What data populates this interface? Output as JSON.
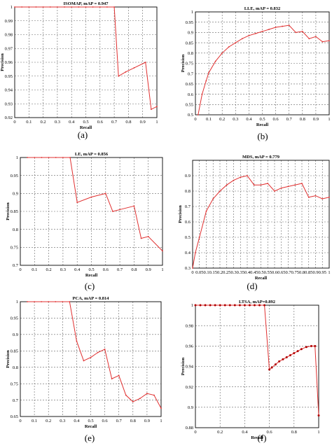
{
  "figure": {
    "panels": [
      {
        "sublabel": "(a)"
      },
      {
        "sublabel": "(b)"
      },
      {
        "sublabel": "(c)"
      },
      {
        "sublabel": "(d)"
      },
      {
        "sublabel": "(e)"
      },
      {
        "sublabel": "(f)"
      }
    ]
  },
  "chart_data": [
    {
      "type": "line",
      "title": "ISOMAP, mAP = 0.947",
      "xlabel": "Recall",
      "ylabel": "Precision",
      "xlim": [
        0,
        1
      ],
      "ylim": [
        0.92,
        1
      ],
      "xticks": [
        0,
        0.1,
        0.2,
        0.3,
        0.4,
        0.5,
        0.6,
        0.7,
        0.8,
        0.9,
        1
      ],
      "xtick_labels": [
        "0",
        "0.1",
        "0.2",
        "0.3",
        "0.4",
        "0.5",
        "0.6",
        "0.7",
        "0.8",
        "0.9",
        "1"
      ],
      "yticks": [
        0.92,
        0.93,
        0.94,
        0.95,
        0.96,
        0.97,
        0.98,
        0.99,
        1
      ],
      "ytick_labels": [
        "0.92",
        "0.93",
        "0.94",
        "0.95",
        "0.96",
        "0.97",
        "0.98",
        "0.99",
        "1"
      ],
      "grid": true,
      "color": "#e03030",
      "x": [
        0,
        0.05,
        0.1,
        0.15,
        0.2,
        0.25,
        0.3,
        0.35,
        0.4,
        0.45,
        0.5,
        0.55,
        0.6,
        0.65,
        0.7,
        0.73,
        0.78,
        0.84,
        0.92,
        0.96,
        1.0
      ],
      "y": [
        1,
        1,
        1,
        1,
        1,
        1,
        1,
        1,
        1,
        1,
        1,
        1,
        1,
        1,
        1,
        0.95,
        0.953,
        0.956,
        0.96,
        0.926,
        0.928
      ]
    },
    {
      "type": "line",
      "title": "LLE, mAP = 0.832",
      "xlabel": "Recall",
      "ylabel": "Precision",
      "xlim": [
        0,
        1
      ],
      "ylim": [
        0.5,
        1
      ],
      "xticks": [
        0,
        0.1,
        0.2,
        0.3,
        0.4,
        0.5,
        0.6,
        0.7,
        0.8,
        0.9,
        1
      ],
      "xtick_labels": [
        "0",
        "0.1",
        "0.2",
        "0.3",
        "0.4",
        "0.5",
        "0.6",
        "0.7",
        "0.8",
        "0.9",
        "1"
      ],
      "yticks": [
        0.5,
        0.55,
        0.6,
        0.65,
        0.7,
        0.75,
        0.8,
        0.85,
        0.9,
        0.95,
        1
      ],
      "ytick_labels": [
        "0.5",
        "0.55",
        "0.6",
        "0.65",
        "0.7",
        "0.75",
        "0.8",
        "0.85",
        "0.9",
        "0.95",
        "1"
      ],
      "grid": true,
      "color": "#e03030",
      "x": [
        0.02,
        0.05,
        0.08,
        0.1,
        0.15,
        0.2,
        0.25,
        0.3,
        0.35,
        0.4,
        0.45,
        0.5,
        0.55,
        0.6,
        0.65,
        0.7,
        0.75,
        0.8,
        0.85,
        0.9,
        0.95,
        1.0
      ],
      "y": [
        0.5,
        0.6,
        0.665,
        0.705,
        0.76,
        0.8,
        0.83,
        0.85,
        0.87,
        0.885,
        0.895,
        0.905,
        0.915,
        0.925,
        0.93,
        0.935,
        0.9,
        0.905,
        0.87,
        0.88,
        0.855,
        0.86
      ]
    },
    {
      "type": "line",
      "title": "LE, mAP = 0.856",
      "xlabel": "Recall",
      "ylabel": "Precision",
      "xlim": [
        0,
        1
      ],
      "ylim": [
        0.7,
        1
      ],
      "xticks": [
        0,
        0.1,
        0.2,
        0.3,
        0.4,
        0.5,
        0.6,
        0.7,
        0.8,
        0.9,
        1
      ],
      "xtick_labels": [
        "0",
        "0.1",
        "0.2",
        "0.3",
        "0.4",
        "0.5",
        "0.6",
        "0.7",
        "0.8",
        "0.9",
        "1"
      ],
      "yticks": [
        0.7,
        0.75,
        0.8,
        0.85,
        0.9,
        0.95,
        1
      ],
      "ytick_labels": [
        "0.7",
        "0.75",
        "0.8",
        "0.85",
        "0.9",
        "0.95",
        "1"
      ],
      "grid": true,
      "color": "#e03030",
      "x": [
        0.05,
        0.1,
        0.15,
        0.2,
        0.25,
        0.3,
        0.35,
        0.4,
        0.5,
        0.6,
        0.65,
        0.7,
        0.8,
        0.85,
        0.9,
        1.0
      ],
      "y": [
        1,
        1,
        1,
        1,
        1,
        1,
        1,
        0.875,
        0.89,
        0.9,
        0.85,
        0.855,
        0.865,
        0.775,
        0.78,
        0.74
      ]
    },
    {
      "type": "line",
      "title": "MDS, mAP = 0.779",
      "xlabel": "Recall",
      "ylabel": "Precision",
      "xlim": [
        0,
        1
      ],
      "ylim": [
        0.3,
        1
      ],
      "xticks": [
        0,
        0.05,
        0.1,
        0.15,
        0.2,
        0.25,
        0.3,
        0.35,
        0.4,
        0.45,
        0.5,
        0.55,
        0.6,
        0.65,
        0.7,
        0.75,
        0.8,
        0.85,
        0.9,
        0.95,
        1
      ],
      "xtick_labels": [
        "0",
        "0.05",
        "0.1",
        "0.15",
        "0.2",
        "0.25",
        "0.3",
        "0.35",
        "0.4",
        "0.45",
        "0.5",
        "0.55",
        "0.6",
        "0.65",
        "0.7",
        "0.75",
        "0.8",
        "0.85",
        "0.9",
        "0.95",
        "1"
      ],
      "yticks": [
        0.3,
        0.4,
        0.5,
        0.6,
        0.7,
        0.8,
        0.9
      ],
      "ytick_labels": [
        "0.3",
        "0.4",
        "0.5",
        "0.6",
        "0.7",
        "0.8",
        "0.9"
      ],
      "grid": true,
      "color": "#e03030",
      "x": [
        0.0,
        0.02,
        0.05,
        0.1,
        0.15,
        0.2,
        0.25,
        0.3,
        0.35,
        0.4,
        0.45,
        0.5,
        0.55,
        0.6,
        0.65,
        0.7,
        0.75,
        0.8,
        0.85,
        0.9,
        0.95,
        1.0
      ],
      "y": [
        0.3,
        0.4,
        0.5,
        0.67,
        0.75,
        0.8,
        0.84,
        0.87,
        0.89,
        0.9,
        0.84,
        0.84,
        0.85,
        0.8,
        0.82,
        0.83,
        0.84,
        0.85,
        0.76,
        0.77,
        0.75,
        0.76
      ]
    },
    {
      "type": "line",
      "title": "PCA, mAP = 0.814",
      "xlabel": "Recall",
      "ylabel": "Precision",
      "xlim": [
        0,
        1
      ],
      "ylim": [
        0.65,
        1
      ],
      "xticks": [
        0,
        0.1,
        0.2,
        0.3,
        0.4,
        0.5,
        0.6,
        0.7,
        0.8,
        0.9,
        1
      ],
      "xtick_labels": [
        "0",
        "0.1",
        "0.2",
        "0.3",
        "0.4",
        "0.5",
        "0.6",
        "0.7",
        "0.8",
        "0.9",
        "1"
      ],
      "yticks": [
        0.65,
        0.7,
        0.75,
        0.8,
        0.85,
        0.9,
        0.95,
        1
      ],
      "ytick_labels": [
        "0.65",
        "0.7",
        "0.75",
        "0.8",
        "0.85",
        "0.9",
        "0.95",
        "1"
      ],
      "grid": true,
      "color": "#e03030",
      "x": [
        0.05,
        0.1,
        0.15,
        0.2,
        0.25,
        0.3,
        0.35,
        0.4,
        0.45,
        0.5,
        0.55,
        0.6,
        0.65,
        0.7,
        0.75,
        0.8,
        0.85,
        0.9,
        0.95,
        1.0
      ],
      "y": [
        1,
        1,
        1,
        1,
        1,
        1,
        1,
        0.88,
        0.82,
        0.83,
        0.845,
        0.855,
        0.765,
        0.775,
        0.715,
        0.695,
        0.705,
        0.72,
        0.715,
        0.675
      ]
    },
    {
      "type": "line",
      "title": "LTSA, mAP=0.892",
      "xlabel": "Recall",
      "ylabel": "Precision",
      "xlim": [
        0,
        1
      ],
      "ylim": [
        0.88,
        1
      ],
      "xticks": [
        0,
        0.2,
        0.4,
        0.6,
        0.8,
        1
      ],
      "xtick_labels": [
        "0",
        "0.2",
        "0.4",
        "0.6",
        "0.8",
        "1"
      ],
      "yticks": [
        0.88,
        0.9,
        0.92,
        0.94,
        0.96,
        0.98,
        1
      ],
      "ytick_labels": [
        "0.88",
        "0.9",
        "0.92",
        "0.94",
        "0.96",
        "0.98",
        "1"
      ],
      "grid": true,
      "color": "#e03030",
      "marker_color": "#b00000",
      "x": [
        0.0,
        0.04,
        0.08,
        0.12,
        0.16,
        0.2,
        0.24,
        0.28,
        0.32,
        0.36,
        0.4,
        0.44,
        0.48,
        0.52,
        0.56,
        0.6,
        0.62,
        0.65,
        0.68,
        0.71,
        0.74,
        0.77,
        0.8,
        0.83,
        0.86,
        0.9,
        0.94,
        0.97,
        1.0
      ],
      "y": [
        1,
        1,
        1,
        1,
        1,
        1,
        1,
        1,
        1,
        1,
        1,
        1,
        1,
        1,
        1,
        0.937,
        0.939,
        0.942,
        0.945,
        0.947,
        0.949,
        0.951,
        0.953,
        0.955,
        0.957,
        0.959,
        0.96,
        0.96,
        0.892
      ]
    }
  ]
}
